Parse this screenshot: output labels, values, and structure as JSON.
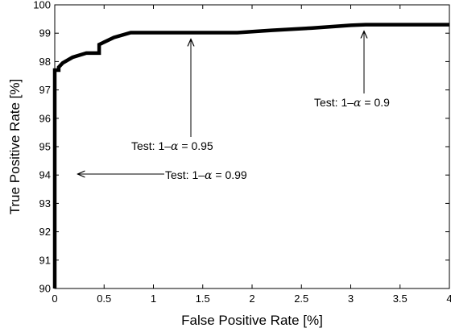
{
  "chart_data": {
    "type": "line",
    "title": "",
    "xlabel": "False Positive Rate [%]",
    "ylabel": "True Positive Rate [%]",
    "xlim": [
      0,
      4
    ],
    "ylim": [
      90,
      100
    ],
    "x_ticks": [
      0,
      0.5,
      1,
      1.5,
      2,
      2.5,
      3,
      3.5,
      4
    ],
    "x_tick_labels": [
      "0",
      "0.5",
      "1",
      "1.5",
      "2",
      "2.5",
      "3",
      "3.5",
      "4"
    ],
    "y_ticks": [
      90,
      91,
      92,
      93,
      94,
      95,
      96,
      97,
      98,
      99,
      100
    ],
    "y_tick_labels": [
      "90",
      "91",
      "92",
      "93",
      "94",
      "95",
      "96",
      "97",
      "98",
      "99",
      "100"
    ],
    "grid": false,
    "legend": "none",
    "series": [
      {
        "color": "#000000",
        "x": [
          0,
          0,
          0.01,
          0.04,
          0.04,
          0.08,
          0.18,
          0.32,
          0.45,
          0.45,
          0.6,
          0.77,
          1.0,
          1.5,
          1.85,
          2.2,
          2.6,
          3.0,
          3.15,
          3.5,
          4.0
        ],
        "y": [
          90,
          97.7,
          97.7,
          97.7,
          97.8,
          97.95,
          98.15,
          98.3,
          98.3,
          98.6,
          98.85,
          99.02,
          99.02,
          99.02,
          99.02,
          99.1,
          99.18,
          99.28,
          99.3,
          99.3,
          99.3
        ]
      }
    ],
    "annotations": [
      {
        "prefix": "Test: 1–",
        "symbol": "α",
        "suffix": " = 0.9",
        "arrow_target": [
          3.15,
          99.3
        ]
      },
      {
        "prefix": "Test: 1–",
        "symbol": "α",
        "suffix": " = 0.95",
        "arrow_target": [
          1.4,
          99.02
        ]
      },
      {
        "prefix": "Test: 1–",
        "symbol": "α",
        "suffix": " = 0.99",
        "arrow_target": [
          0.2,
          94.1
        ]
      }
    ]
  }
}
